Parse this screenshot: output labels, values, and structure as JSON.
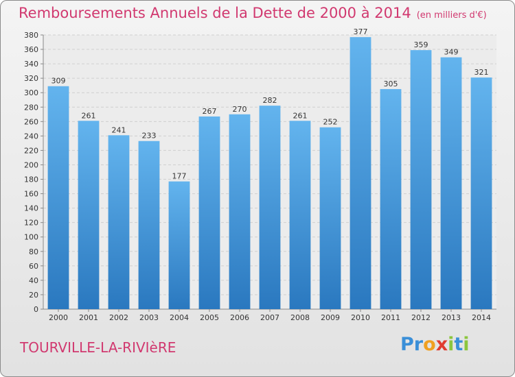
{
  "title": "Remboursements Annuels de la Dette de 2000 à 2014",
  "unit_note": "(en milliers d'€)",
  "commune": "TOURVILLE-LA-RIVIèRE",
  "logo": {
    "letters": [
      "P",
      "r",
      "o",
      "x",
      "i",
      "t",
      "i"
    ],
    "colors": [
      "#3a8fd8",
      "#3a8fd8",
      "#f0a020",
      "#e03c30",
      "#8cc63e",
      "#3a8fd8",
      "#8cc63e"
    ]
  },
  "colors": {
    "bar_top": "#63b4ee",
    "bar_bottom": "#2a78bf",
    "title": "#d1386f",
    "grid": "#cfcfcf"
  },
  "chart_data": {
    "type": "bar",
    "title": "Remboursements Annuels de la Dette de 2000 à 2014",
    "categories": [
      "2000",
      "2001",
      "2002",
      "2003",
      "2004",
      "2005",
      "2006",
      "2007",
      "2008",
      "2009",
      "2010",
      "2011",
      "2012",
      "2013",
      "2014"
    ],
    "values": [
      309,
      261,
      241,
      233,
      177,
      267,
      270,
      282,
      261,
      252,
      377,
      305,
      359,
      349,
      321
    ],
    "ylim": [
      0,
      380
    ],
    "yticks": [
      0,
      20,
      40,
      60,
      80,
      100,
      120,
      140,
      160,
      180,
      200,
      220,
      240,
      260,
      280,
      300,
      320,
      340,
      360,
      380
    ],
    "grid": true,
    "legend": "none"
  }
}
